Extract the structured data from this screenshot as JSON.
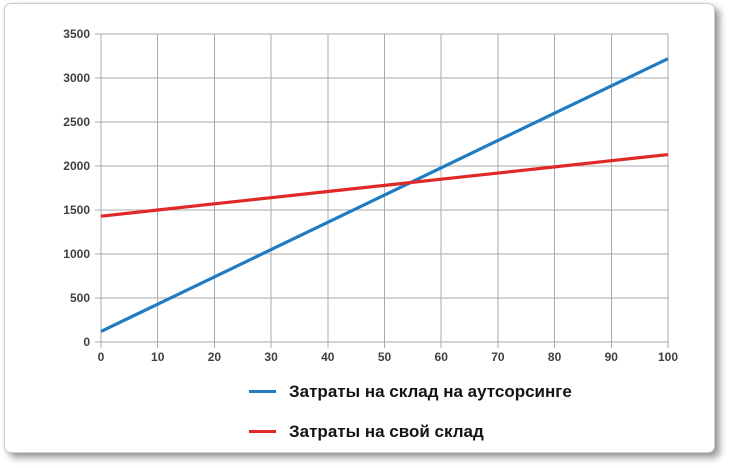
{
  "page": {
    "background_color": "#ffffff",
    "card_border_color": "#cfcfcf"
  },
  "chart_data": {
    "type": "line",
    "title": "",
    "xlabel": "",
    "ylabel": "",
    "x": [
      0,
      10,
      20,
      30,
      40,
      50,
      60,
      70,
      80,
      90,
      100
    ],
    "series": [
      {
        "name": "Затраты на склад на аутсорсинге",
        "color": "#1f7cc2",
        "values": [
          120,
          430,
          740,
          1050,
          1360,
          1670,
          1980,
          2290,
          2600,
          2910,
          3220
        ]
      },
      {
        "name": "Затраты на свой склад",
        "color": "#e02826",
        "values": [
          1430,
          1500,
          1570,
          1640,
          1710,
          1780,
          1850,
          1920,
          1990,
          2060,
          2130
        ]
      }
    ],
    "xlim": [
      0,
      100
    ],
    "ylim": [
      0,
      3500
    ],
    "x_ticks": [
      0,
      10,
      20,
      30,
      40,
      50,
      60,
      70,
      80,
      90,
      100
    ],
    "y_ticks": [
      0,
      500,
      1000,
      1500,
      2000,
      2500,
      3000,
      3500
    ],
    "grid": true,
    "gridline_color": "#ababab",
    "tick_label_color": "#3f3f3f",
    "legend_position": "bottom",
    "intersection_note": {
      "x": 55,
      "y": 1815
    }
  }
}
